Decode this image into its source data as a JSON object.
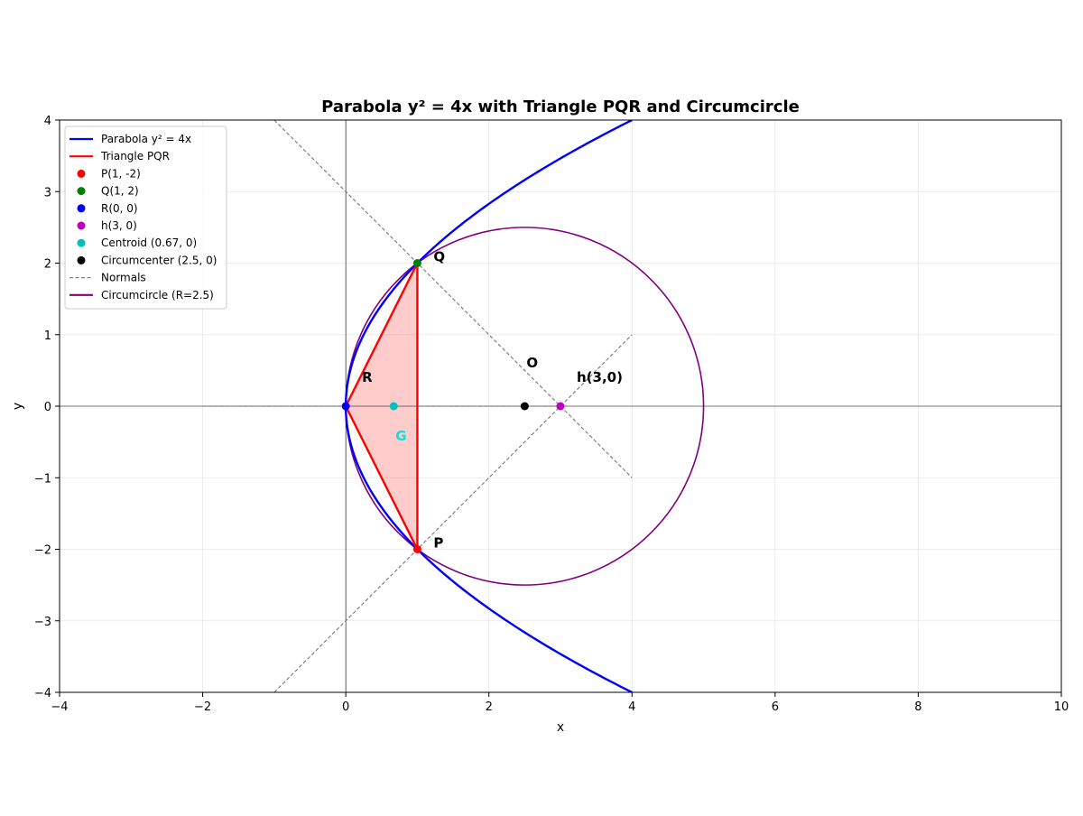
{
  "chart_data": {
    "type": "line",
    "title": "Parabola y² = 4x with Triangle PQR and Circumcircle",
    "xlabel": "x",
    "ylabel": "y",
    "xlim": [
      -4,
      10
    ],
    "ylim": [
      -4,
      4
    ],
    "grid": true,
    "legend_position": "top-left",
    "x_ticks": [
      -4,
      -2,
      0,
      2,
      4,
      6,
      8,
      10
    ],
    "y_ticks": [
      -4,
      -3,
      -2,
      -1,
      0,
      1,
      2,
      3,
      4
    ],
    "x_tick_labels": [
      "−4",
      "−2",
      "0",
      "2",
      "4",
      "6",
      "8",
      "10"
    ],
    "y_tick_labels": [
      "−4",
      "−3",
      "−2",
      "−1",
      "0",
      "1",
      "2",
      "3",
      "4"
    ],
    "parabola": {
      "name": "Parabola y² = 4x",
      "a": 1,
      "x_range": [
        0,
        4
      ],
      "color": "#0000ff"
    },
    "triangle": {
      "name": "Triangle PQR",
      "vertices": [
        [
          1,
          -2
        ],
        [
          1,
          2
        ],
        [
          0,
          0
        ]
      ],
      "color": "#ff0000",
      "fill": "#ff0000"
    },
    "points": [
      {
        "name": "P(1, -2)",
        "x": 1,
        "y": -2,
        "color": "#ff0000",
        "label": "P",
        "label_color": "#000000"
      },
      {
        "name": "Q(1, 2)",
        "x": 1,
        "y": 2,
        "color": "#008000",
        "label": "Q",
        "label_color": "#000000"
      },
      {
        "name": "R(0, 0)",
        "x": 0,
        "y": 0,
        "color": "#0000ff",
        "label": "R",
        "label_color": "#000000"
      },
      {
        "name": "h(3, 0)",
        "x": 3,
        "y": 0,
        "color": "#bf00bf",
        "label": "h(3,0)",
        "label_color": "#000000"
      },
      {
        "name": "Centroid (0.67, 0)",
        "x": 0.67,
        "y": 0,
        "color": "#00bfbf",
        "label": "G",
        "label_color": "#00e5e5"
      },
      {
        "name": "Circumcenter (2.5, 0)",
        "x": 2.5,
        "y": 0,
        "color": "#000000",
        "label": "O",
        "label_color": "#000000"
      }
    ],
    "normals": {
      "name": "Normals",
      "color": "#808080",
      "segments": [
        [
          [
            -1,
            4
          ],
          [
            4,
            -1
          ]
        ],
        [
          [
            -1,
            -4
          ],
          [
            4,
            1
          ]
        ],
        [
          [
            -2,
            0
          ],
          [
            3,
            0
          ]
        ]
      ]
    },
    "circumcircle": {
      "name": "Circumcircle (R=2.5)",
      "cx": 2.5,
      "cy": 0,
      "r": 2.5,
      "color": "#800080"
    },
    "legend": [
      {
        "label": "Parabola y² = 4x",
        "kind": "line",
        "color": "#0000ff"
      },
      {
        "label": "Triangle PQR",
        "kind": "line",
        "color": "#ff0000"
      },
      {
        "label": "P(1, -2)",
        "kind": "marker",
        "color": "#ff0000"
      },
      {
        "label": "Q(1, 2)",
        "kind": "marker",
        "color": "#008000"
      },
      {
        "label": "R(0, 0)",
        "kind": "marker",
        "color": "#0000ff"
      },
      {
        "label": "h(3, 0)",
        "kind": "marker",
        "color": "#bf00bf"
      },
      {
        "label": "Centroid (0.67, 0)",
        "kind": "marker",
        "color": "#00bfbf"
      },
      {
        "label": "Circumcenter (2.5, 0)",
        "kind": "marker",
        "color": "#000000"
      },
      {
        "label": "Normals",
        "kind": "dashed",
        "color": "#808080"
      },
      {
        "label": "Circumcircle (R=2.5)",
        "kind": "line",
        "color": "#800080"
      }
    ]
  }
}
